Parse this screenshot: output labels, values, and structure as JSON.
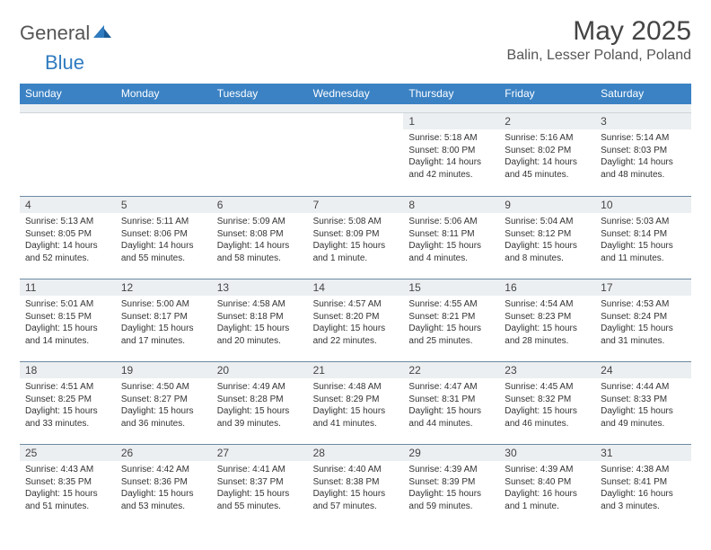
{
  "brand": {
    "name1": "General",
    "name2": "Blue"
  },
  "title": "May 2025",
  "location": "Balin, Lesser Poland, Poland",
  "colors": {
    "header_bg": "#3b82c4",
    "band_bg": "#eceff1",
    "rule": "#6b8aa3",
    "text": "#333333",
    "title": "#444444"
  },
  "typography": {
    "title_fontsize": 30,
    "location_fontsize": 16,
    "dayhead_fontsize": 12,
    "body_fontsize": 10
  },
  "dayNames": [
    "Sunday",
    "Monday",
    "Tuesday",
    "Wednesday",
    "Thursday",
    "Friday",
    "Saturday"
  ],
  "layout": {
    "columns": 7,
    "rows": 5,
    "firstDayOffset": 4
  },
  "weeks": [
    [
      null,
      null,
      null,
      null,
      {
        "n": "1",
        "sr": "5:18 AM",
        "ss": "8:00 PM",
        "dl": "14 hours and 42 minutes."
      },
      {
        "n": "2",
        "sr": "5:16 AM",
        "ss": "8:02 PM",
        "dl": "14 hours and 45 minutes."
      },
      {
        "n": "3",
        "sr": "5:14 AM",
        "ss": "8:03 PM",
        "dl": "14 hours and 48 minutes."
      }
    ],
    [
      {
        "n": "4",
        "sr": "5:13 AM",
        "ss": "8:05 PM",
        "dl": "14 hours and 52 minutes."
      },
      {
        "n": "5",
        "sr": "5:11 AM",
        "ss": "8:06 PM",
        "dl": "14 hours and 55 minutes."
      },
      {
        "n": "6",
        "sr": "5:09 AM",
        "ss": "8:08 PM",
        "dl": "14 hours and 58 minutes."
      },
      {
        "n": "7",
        "sr": "5:08 AM",
        "ss": "8:09 PM",
        "dl": "15 hours and 1 minute."
      },
      {
        "n": "8",
        "sr": "5:06 AM",
        "ss": "8:11 PM",
        "dl": "15 hours and 4 minutes."
      },
      {
        "n": "9",
        "sr": "5:04 AM",
        "ss": "8:12 PM",
        "dl": "15 hours and 8 minutes."
      },
      {
        "n": "10",
        "sr": "5:03 AM",
        "ss": "8:14 PM",
        "dl": "15 hours and 11 minutes."
      }
    ],
    [
      {
        "n": "11",
        "sr": "5:01 AM",
        "ss": "8:15 PM",
        "dl": "15 hours and 14 minutes."
      },
      {
        "n": "12",
        "sr": "5:00 AM",
        "ss": "8:17 PM",
        "dl": "15 hours and 17 minutes."
      },
      {
        "n": "13",
        "sr": "4:58 AM",
        "ss": "8:18 PM",
        "dl": "15 hours and 20 minutes."
      },
      {
        "n": "14",
        "sr": "4:57 AM",
        "ss": "8:20 PM",
        "dl": "15 hours and 22 minutes."
      },
      {
        "n": "15",
        "sr": "4:55 AM",
        "ss": "8:21 PM",
        "dl": "15 hours and 25 minutes."
      },
      {
        "n": "16",
        "sr": "4:54 AM",
        "ss": "8:23 PM",
        "dl": "15 hours and 28 minutes."
      },
      {
        "n": "17",
        "sr": "4:53 AM",
        "ss": "8:24 PM",
        "dl": "15 hours and 31 minutes."
      }
    ],
    [
      {
        "n": "18",
        "sr": "4:51 AM",
        "ss": "8:25 PM",
        "dl": "15 hours and 33 minutes."
      },
      {
        "n": "19",
        "sr": "4:50 AM",
        "ss": "8:27 PM",
        "dl": "15 hours and 36 minutes."
      },
      {
        "n": "20",
        "sr": "4:49 AM",
        "ss": "8:28 PM",
        "dl": "15 hours and 39 minutes."
      },
      {
        "n": "21",
        "sr": "4:48 AM",
        "ss": "8:29 PM",
        "dl": "15 hours and 41 minutes."
      },
      {
        "n": "22",
        "sr": "4:47 AM",
        "ss": "8:31 PM",
        "dl": "15 hours and 44 minutes."
      },
      {
        "n": "23",
        "sr": "4:45 AM",
        "ss": "8:32 PM",
        "dl": "15 hours and 46 minutes."
      },
      {
        "n": "24",
        "sr": "4:44 AM",
        "ss": "8:33 PM",
        "dl": "15 hours and 49 minutes."
      }
    ],
    [
      {
        "n": "25",
        "sr": "4:43 AM",
        "ss": "8:35 PM",
        "dl": "15 hours and 51 minutes."
      },
      {
        "n": "26",
        "sr": "4:42 AM",
        "ss": "8:36 PM",
        "dl": "15 hours and 53 minutes."
      },
      {
        "n": "27",
        "sr": "4:41 AM",
        "ss": "8:37 PM",
        "dl": "15 hours and 55 minutes."
      },
      {
        "n": "28",
        "sr": "4:40 AM",
        "ss": "8:38 PM",
        "dl": "15 hours and 57 minutes."
      },
      {
        "n": "29",
        "sr": "4:39 AM",
        "ss": "8:39 PM",
        "dl": "15 hours and 59 minutes."
      },
      {
        "n": "30",
        "sr": "4:39 AM",
        "ss": "8:40 PM",
        "dl": "16 hours and 1 minute."
      },
      {
        "n": "31",
        "sr": "4:38 AM",
        "ss": "8:41 PM",
        "dl": "16 hours and 3 minutes."
      }
    ]
  ],
  "labels": {
    "sunrise": "Sunrise: ",
    "sunset": "Sunset: ",
    "daylight": "Daylight: "
  }
}
